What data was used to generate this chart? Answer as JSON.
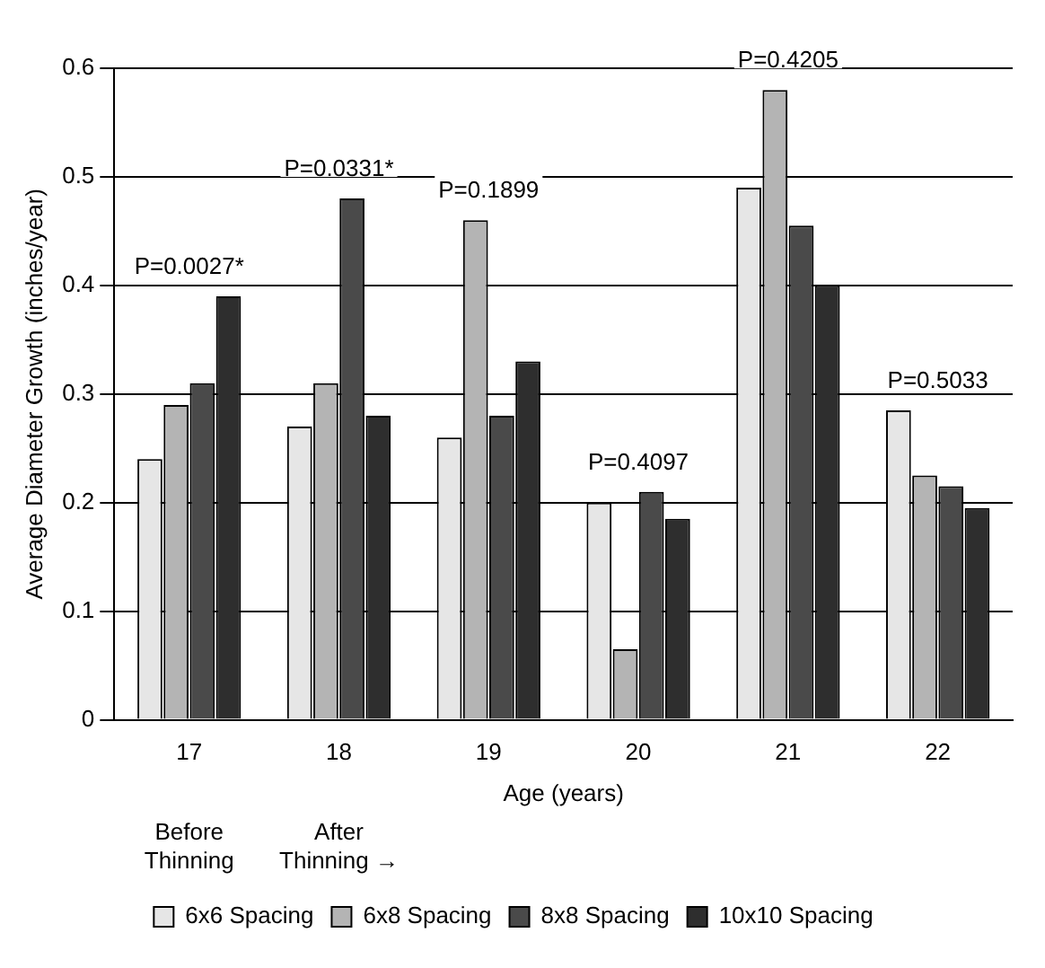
{
  "chart_data": {
    "type": "bar",
    "xlabel": "Age (years)",
    "ylabel": "Average Diameter Growth (inches/year)",
    "categories": [
      "17",
      "18",
      "19",
      "20",
      "21",
      "22"
    ],
    "series": [
      {
        "name": "6x6 Spacing",
        "color": "#e6e6e6",
        "values": [
          0.24,
          0.27,
          0.26,
          0.2,
          0.49,
          0.285
        ]
      },
      {
        "name": "6x8 Spacing",
        "color": "#b4b4b4",
        "values": [
          0.29,
          0.31,
          0.46,
          0.065,
          0.58,
          0.225
        ]
      },
      {
        "name": "8x8 Spacing",
        "color": "#4a4a4a",
        "values": [
          0.31,
          0.48,
          0.28,
          0.21,
          0.455,
          0.215
        ]
      },
      {
        "name": "10x10 Spacing",
        "color": "#2e2e2e",
        "values": [
          0.39,
          0.28,
          0.33,
          0.185,
          0.4,
          0.195
        ]
      }
    ],
    "ylim": [
      0,
      0.6
    ],
    "yticks": [
      0,
      0.1,
      0.2,
      0.3,
      0.4,
      0.5,
      0.6
    ],
    "grid": "y",
    "legend": "bottom",
    "annotations": [
      "P=0.0027*",
      "P=0.0331*",
      "P=0.1899",
      "P=0.4097",
      "P=0.4205",
      "P=0.5033",
      "Before Thinning",
      "After Thinning →"
    ]
  }
}
